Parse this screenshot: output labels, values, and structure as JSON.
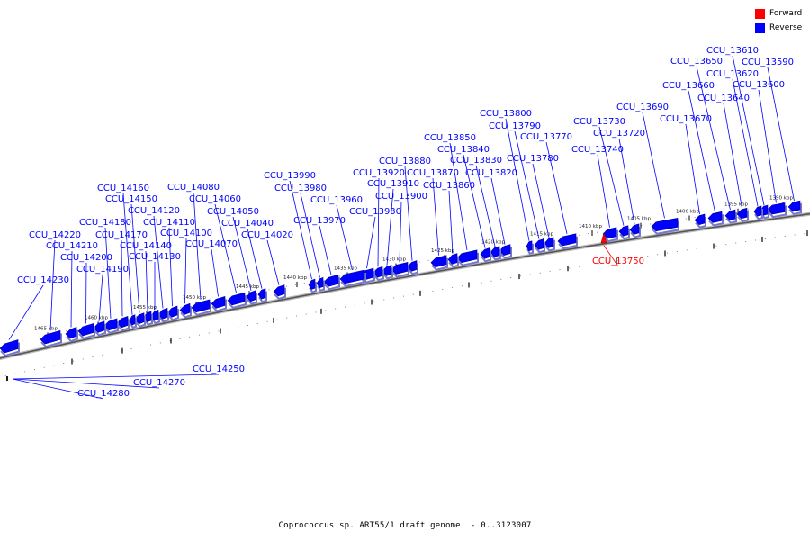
{
  "legend": {
    "forward_label": "Forward",
    "reverse_label": "Reverse",
    "forward_color": "#ff0000",
    "reverse_color": "#0000ff"
  },
  "caption": "Coprococcus sp. ART55/1 draft genome. - 0..3123007",
  "ticks": [
    "1390 kbp",
    "1395 kbp",
    "1400 kbp",
    "1405 kbp",
    "1410 kbp",
    "1415 kbp",
    "1420 kbp",
    "1425 kbp",
    "1430 kbp",
    "1435 kbp",
    "1440 kbp",
    "1445 kbp",
    "1450 kbp",
    "1455 kbp",
    "1460 kbp",
    "1465 kbp"
  ],
  "genes": [
    {
      "label": "CCU_13590",
      "strand": "reverse"
    },
    {
      "label": "CCU_13600",
      "strand": "reverse"
    },
    {
      "label": "CCU_13610",
      "strand": "reverse"
    },
    {
      "label": "CCU_13620",
      "strand": "reverse"
    },
    {
      "label": "CCU_13640",
      "strand": "reverse"
    },
    {
      "label": "CCU_13650",
      "strand": "reverse"
    },
    {
      "label": "CCU_13660",
      "strand": "reverse"
    },
    {
      "label": "CCU_13670",
      "strand": "reverse"
    },
    {
      "label": "CCU_13690",
      "strand": "reverse"
    },
    {
      "label": "CCU_13720",
      "strand": "reverse"
    },
    {
      "label": "CCU_13730",
      "strand": "reverse"
    },
    {
      "label": "CCU_13740",
      "strand": "reverse"
    },
    {
      "label": "CCU_13750",
      "strand": "forward"
    },
    {
      "label": "CCU_13770",
      "strand": "reverse"
    },
    {
      "label": "CCU_13780",
      "strand": "reverse"
    },
    {
      "label": "CCU_13790",
      "strand": "reverse"
    },
    {
      "label": "CCU_13800",
      "strand": "reverse"
    },
    {
      "label": "CCU_13820",
      "strand": "reverse"
    },
    {
      "label": "CCU_13830",
      "strand": "reverse"
    },
    {
      "label": "CCU_13840",
      "strand": "reverse"
    },
    {
      "label": "CCU_13850",
      "strand": "reverse"
    },
    {
      "label": "CCU_13860",
      "strand": "reverse"
    },
    {
      "label": "CCU_13870",
      "strand": "reverse"
    },
    {
      "label": "CCU_13880",
      "strand": "reverse"
    },
    {
      "label": "CCU_13900",
      "strand": "reverse"
    },
    {
      "label": "CCU_13910",
      "strand": "reverse"
    },
    {
      "label": "CCU_13920",
      "strand": "reverse"
    },
    {
      "label": "CCU_13930",
      "strand": "reverse"
    },
    {
      "label": "CCU_13960",
      "strand": "reverse"
    },
    {
      "label": "CCU_13970",
      "strand": "reverse"
    },
    {
      "label": "CCU_13980",
      "strand": "reverse"
    },
    {
      "label": "CCU_13990",
      "strand": "reverse"
    },
    {
      "label": "CCU_14020",
      "strand": "reverse"
    },
    {
      "label": "CCU_14040",
      "strand": "reverse"
    },
    {
      "label": "CCU_14050",
      "strand": "reverse"
    },
    {
      "label": "CCU_14060",
      "strand": "reverse"
    },
    {
      "label": "CCU_14070",
      "strand": "reverse"
    },
    {
      "label": "CCU_14080",
      "strand": "reverse"
    },
    {
      "label": "CCU_14100",
      "strand": "reverse"
    },
    {
      "label": "CCU_14110",
      "strand": "reverse"
    },
    {
      "label": "CCU_14120",
      "strand": "reverse"
    },
    {
      "label": "CCU_14130",
      "strand": "reverse"
    },
    {
      "label": "CCU_14140",
      "strand": "reverse"
    },
    {
      "label": "CCU_14150",
      "strand": "reverse"
    },
    {
      "label": "CCU_14160",
      "strand": "reverse"
    },
    {
      "label": "CCU_14170",
      "strand": "reverse"
    },
    {
      "label": "CCU_14180",
      "strand": "reverse"
    },
    {
      "label": "CCU_14190",
      "strand": "reverse"
    },
    {
      "label": "CCU_14200",
      "strand": "reverse"
    },
    {
      "label": "CCU_14210",
      "strand": "reverse"
    },
    {
      "label": "CCU_14220",
      "strand": "reverse"
    },
    {
      "label": "CCU_14230",
      "strand": "reverse"
    },
    {
      "label": "CCU_14250",
      "strand": "reverse"
    },
    {
      "label": "CCU_14270",
      "strand": "reverse"
    },
    {
      "label": "CCU_14280",
      "strand": "reverse"
    }
  ]
}
